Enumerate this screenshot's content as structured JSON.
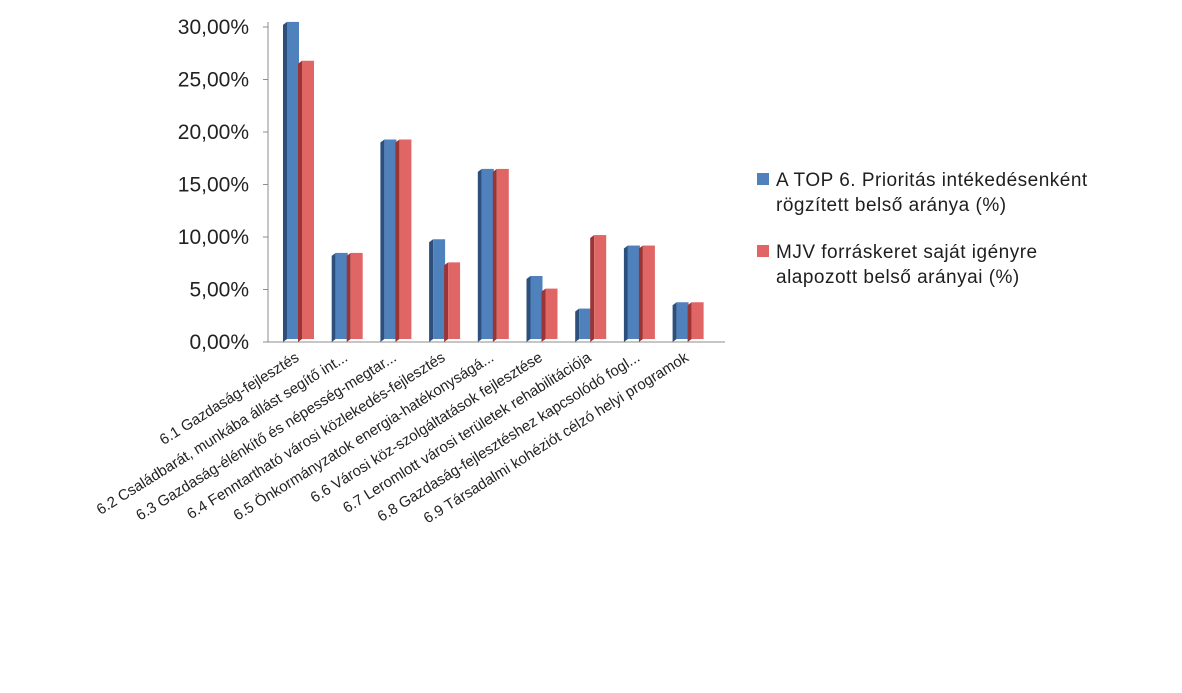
{
  "colors": {
    "series1": "#4f81bd",
    "series1_side": "#2d4f7c",
    "series2": "#e06666",
    "series2_side": "#9b3535",
    "axis": "#8c8c8c"
  },
  "chart_data": {
    "type": "bar",
    "style": "3d-clustered-column",
    "title": "",
    "xlabel": "",
    "ylabel": "",
    "ylim": [
      0,
      30
    ],
    "yticks": [
      "0,00%",
      "5,00%",
      "10,00%",
      "15,00%",
      "20,00%",
      "25,00%",
      "30,00%"
    ],
    "grid": false,
    "legend_position": "right",
    "categories": [
      "6.1 Gazdaság-fejlesztés",
      "6.2 Családbarát, munkába állást segítő int...",
      "6.3 Gazdaság-élénkítő és népesség-megtar...",
      "6.4 Fenntartható városi közlekedés-fejlesztés",
      "6.5 Önkormányzatok energia-hatékonyságá...",
      "6.6 Városi köz-szolgáltatások fejlesztése",
      "6.7 Leromlott városi területek rehabilitációja",
      "6.8 Gazdaság-fejlesztéshez kapcsolódó fogl...",
      "6.9 Társadalmi kohéziót célzó helyi programok"
    ],
    "series": [
      {
        "name": "A TOP 6. Prioritás intékedésenként rögzített belső aránya (%)",
        "values": [
          30.2,
          8.2,
          19.0,
          9.5,
          16.2,
          6.0,
          2.9,
          8.9,
          3.5
        ]
      },
      {
        "name": "MJV forráskeret saját igényre alapozott belső arányai (%)",
        "values": [
          26.5,
          8.2,
          19.0,
          7.3,
          16.2,
          4.8,
          9.9,
          8.9,
          3.5
        ]
      }
    ]
  },
  "legend": {
    "items": [
      {
        "lines": [
          "A TOP 6. Prioritás intékedésenként",
          "rögzített belső aránya (%)"
        ]
      },
      {
        "lines": [
          "MJV forráskeret saját igényre",
          "alapozott belső arányai (%)"
        ]
      }
    ]
  }
}
